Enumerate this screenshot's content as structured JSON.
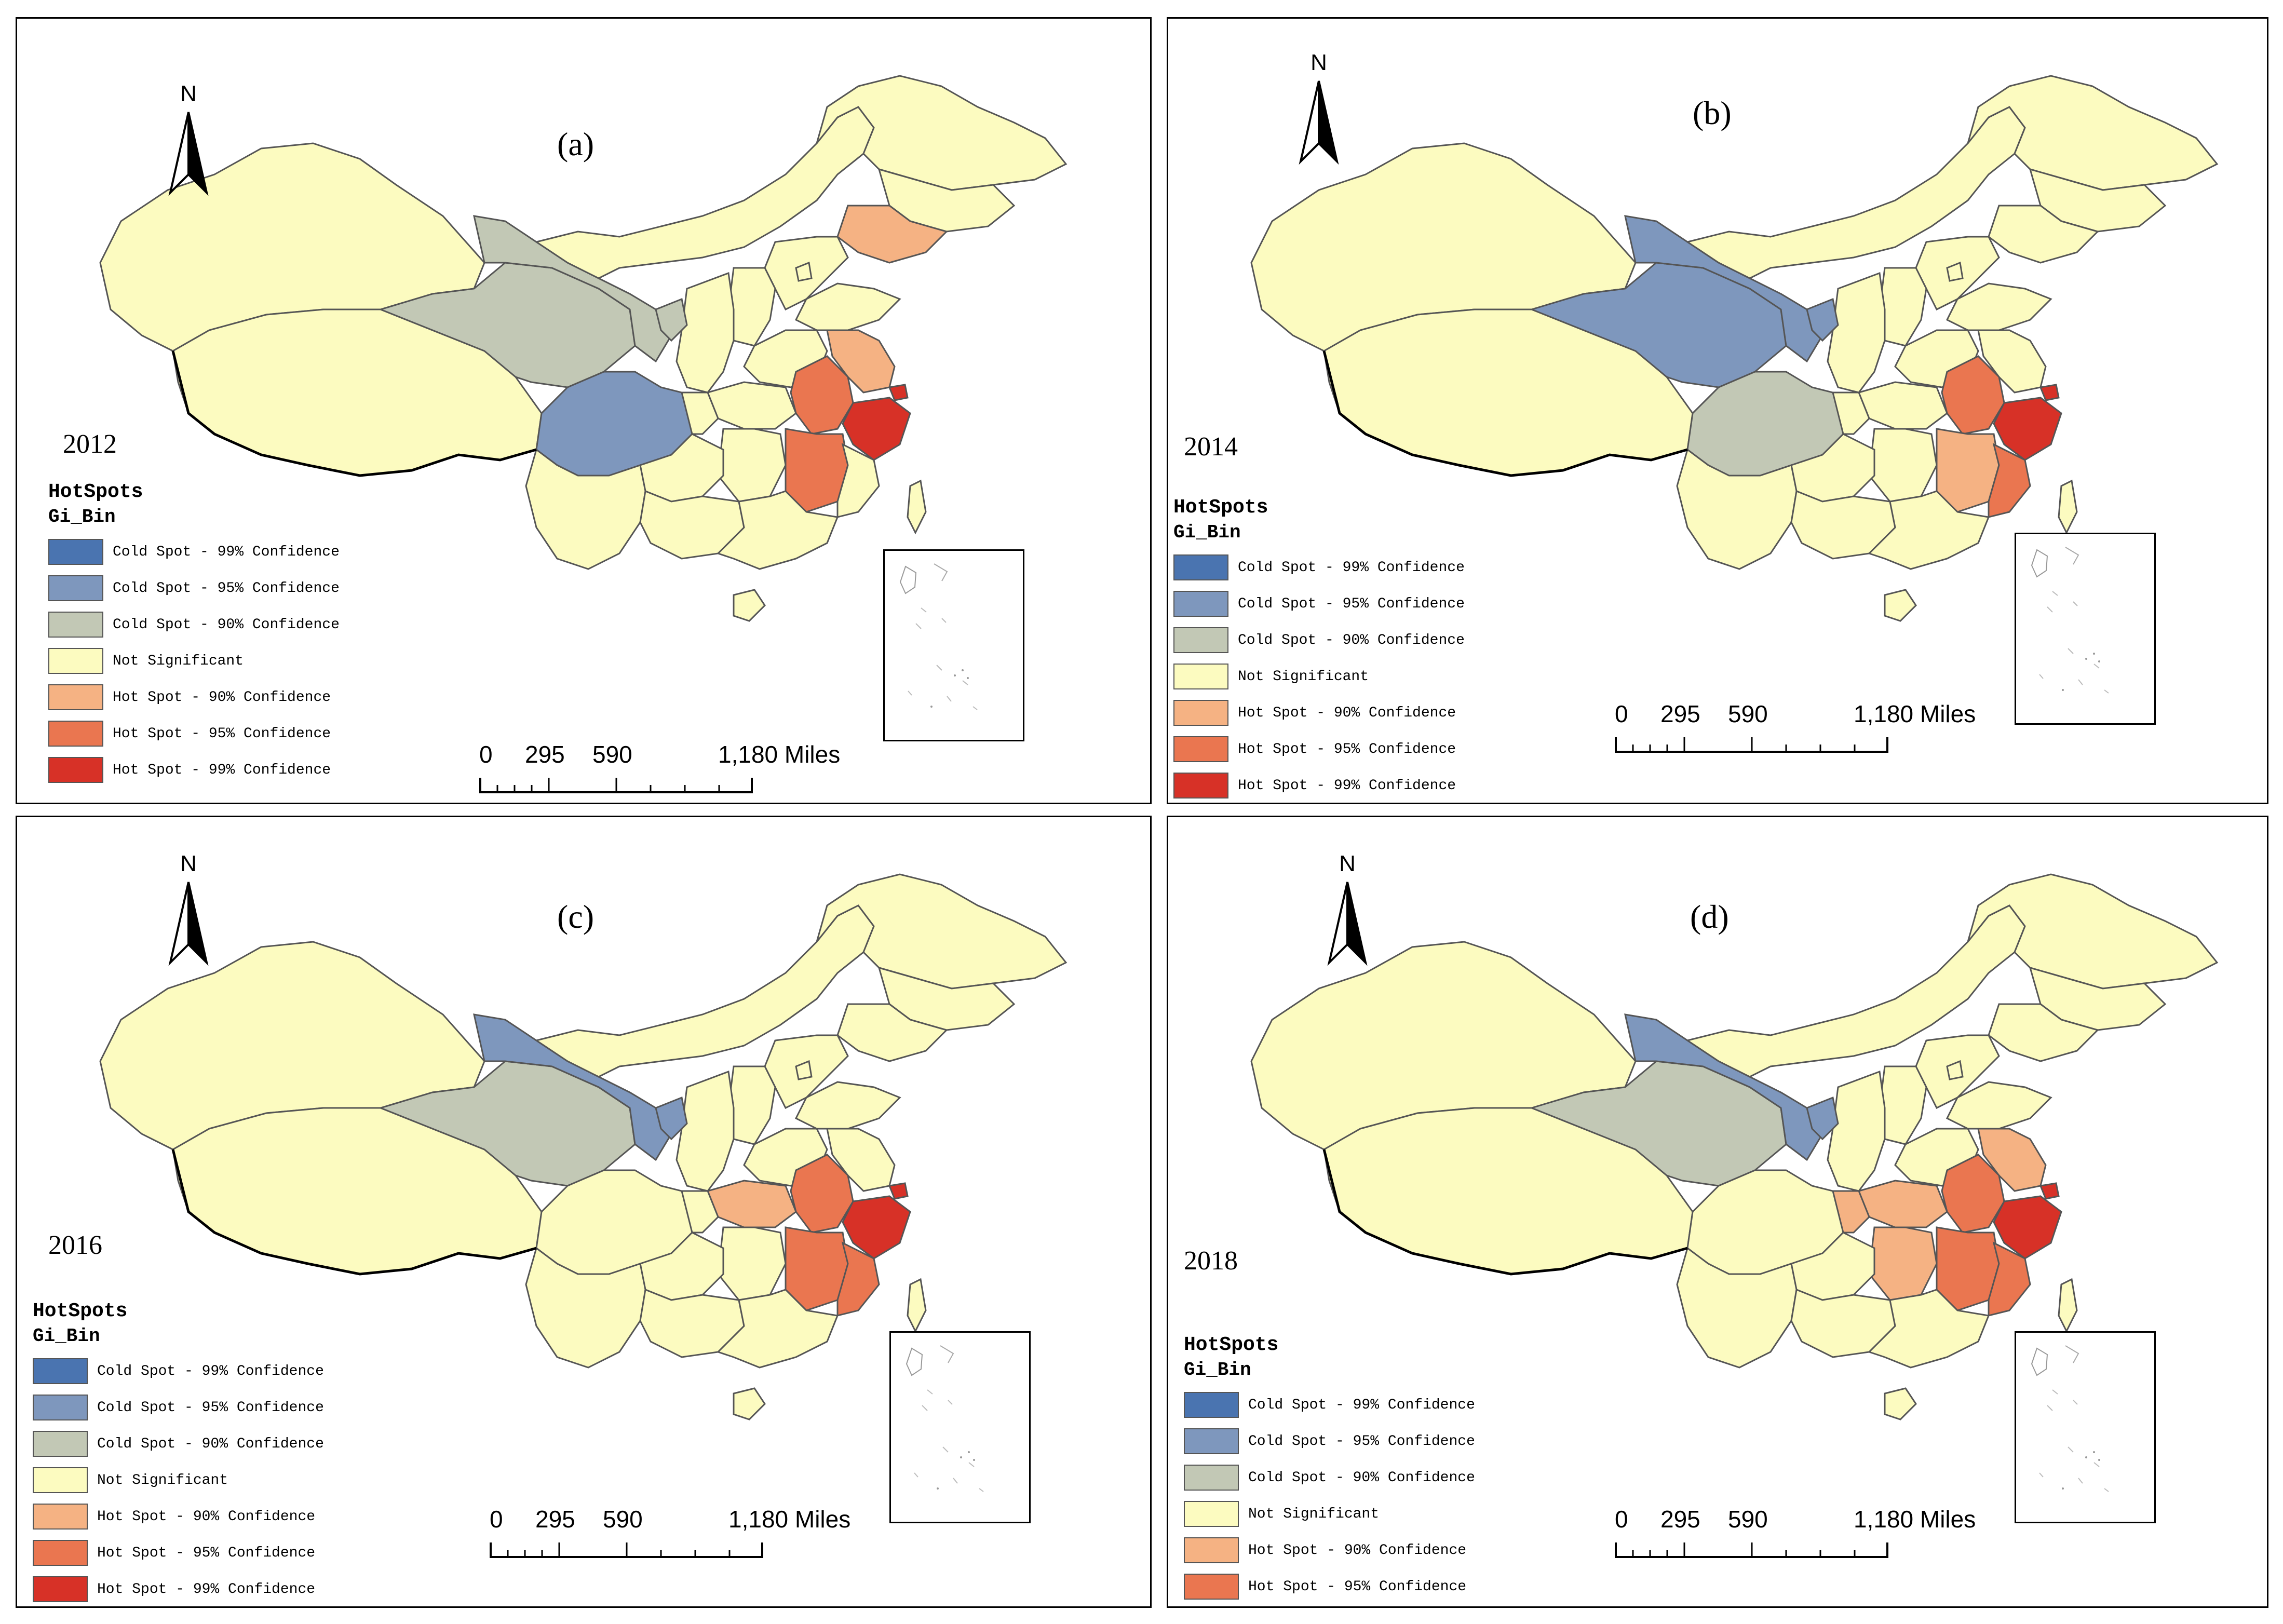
{
  "legend": {
    "title": "HotSpots",
    "subtitle": "Gi_Bin",
    "items": [
      {
        "label": "Cold Spot - 99% Confidence",
        "color": "#4a74b0"
      },
      {
        "label": "Cold Spot - 95% Confidence",
        "color": "#7e97bd"
      },
      {
        "label": "Cold Spot - 90% Confidence",
        "color": "#c2c8b5"
      },
      {
        "label": "Not Significant",
        "color": "#fcfbc0"
      },
      {
        "label": "Hot Spot - 90% Confidence",
        "color": "#f5b283"
      },
      {
        "label": "Hot Spot - 95% Confidence",
        "color": "#ea7650"
      },
      {
        "label": "Hot Spot - 99% Confidence",
        "color": "#d73127"
      }
    ]
  },
  "scale_bar": {
    "t0": "0",
    "t1": "295",
    "t2": "590",
    "t3": "1,180 Miles"
  },
  "north_label": "N",
  "panels": [
    {
      "label": "(a)",
      "year": "2012"
    },
    {
      "label": "(b)",
      "year": "2014"
    },
    {
      "label": "(c)",
      "year": "2016"
    },
    {
      "label": "(d)",
      "year": "2018"
    }
  ]
}
